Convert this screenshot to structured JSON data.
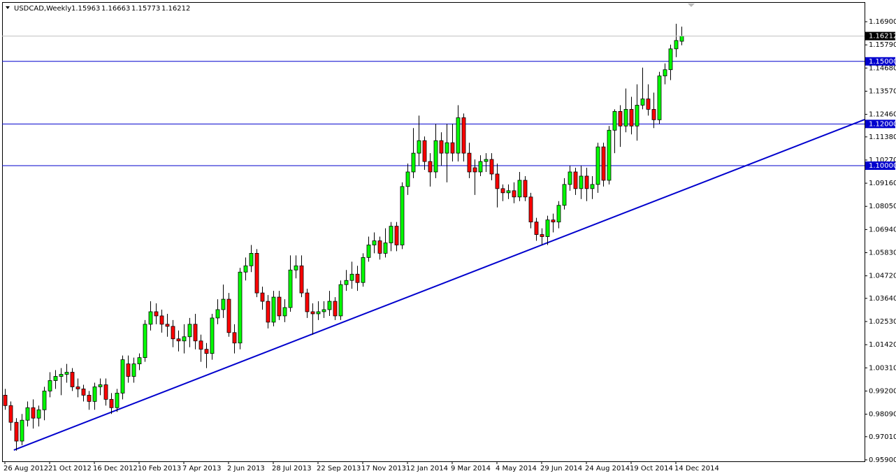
{
  "chart_data": {
    "type": "candlestick",
    "symbol": "USDCAD,Weekly",
    "categories": [
      "26 Aug 2012",
      null,
      null,
      null,
      null,
      null,
      null,
      null,
      "21 Oct 2012",
      null,
      null,
      null,
      null,
      null,
      null,
      null,
      "16 Dec 2012",
      null,
      null,
      null,
      null,
      null,
      null,
      null,
      "10 Feb 2013",
      null,
      null,
      null,
      null,
      null,
      null,
      null,
      "7 Apr 2013",
      null,
      null,
      null,
      null,
      null,
      null,
      null,
      "2 Jun 2013",
      null,
      null,
      null,
      null,
      null,
      null,
      null,
      "28 Jul 2013",
      null,
      null,
      null,
      null,
      null,
      null,
      null,
      "22 Sep 2013",
      null,
      null,
      null,
      null,
      null,
      null,
      null,
      "17 Nov 2013",
      null,
      null,
      null,
      null,
      null,
      null,
      null,
      "12 Jan 2014",
      null,
      null,
      null,
      null,
      null,
      null,
      null,
      "9 Mar 2014",
      null,
      null,
      null,
      null,
      null,
      null,
      null,
      "4 May 2014",
      null,
      null,
      null,
      null,
      null,
      null,
      null,
      "29 Jun 2014",
      null,
      null,
      null,
      null,
      null,
      null,
      null,
      "24 Aug 2014",
      null,
      null,
      null,
      null,
      null,
      null,
      null,
      "19 Oct 2014",
      null,
      null,
      null,
      null,
      null,
      null,
      null,
      "14 Dec 2014",
      null
    ],
    "open": [
      0.99,
      0.985,
      0.977,
      0.968,
      0.978,
      0.984,
      0.979,
      0.983,
      0.992,
      0.997,
      0.999,
      1.0,
      1.001,
      0.994,
      0.993,
      0.99,
      0.987,
      0.994,
      0.995,
      0.988,
      0.984,
      0.991,
      1.005,
      0.999,
      1.005,
      1.008,
      1.024,
      1.03,
      1.028,
      1.024,
      1.023,
      1.017,
      1.016,
      1.018,
      1.024,
      1.016,
      1.012,
      1.01,
      1.027,
      1.031,
      1.036,
      1.02,
      1.015,
      1.049,
      1.052,
      1.058,
      1.039,
      1.035,
      1.025,
      1.037,
      1.028,
      1.032,
      1.05,
      1.052,
      1.039,
      1.03,
      1.029,
      1.03,
      1.031,
      1.035,
      1.028,
      1.043,
      1.045,
      1.048,
      1.044,
      1.056,
      1.062,
      1.064,
      1.058,
      1.063,
      1.071,
      1.062,
      1.09,
      1.097,
      1.106,
      1.112,
      1.102,
      1.097,
      1.112,
      1.106,
      1.111,
      1.106,
      1.123,
      1.106,
      1.099,
      1.097,
      1.102,
      1.103,
      1.096,
      1.089,
      1.087,
      1.088,
      1.085,
      1.093,
      1.085,
      1.073,
      1.067,
      1.066,
      1.074,
      1.073,
      1.081,
      1.091,
      1.097,
      1.089,
      1.095,
      1.089,
      1.091,
      1.109,
      1.093,
      1.117,
      1.126,
      1.119,
      1.127,
      1.119,
      1.129,
      1.132,
      1.127,
      1.122,
      1.143,
      1.146,
      1.156,
      1.15963
    ],
    "high": [
      0.993,
      0.987,
      0.979,
      0.981,
      0.987,
      0.988,
      0.985,
      0.994,
      1.001,
      1.002,
      1.003,
      1.005,
      1.003,
      0.998,
      0.995,
      0.992,
      0.996,
      0.998,
      0.998,
      0.991,
      0.993,
      1.009,
      1.009,
      1.008,
      1.01,
      1.026,
      1.035,
      1.034,
      1.031,
      1.029,
      1.026,
      1.021,
      1.024,
      1.027,
      1.029,
      1.019,
      1.015,
      1.029,
      1.036,
      1.043,
      1.039,
      1.024,
      1.051,
      1.056,
      1.062,
      1.06,
      1.042,
      1.038,
      1.04,
      1.04,
      1.036,
      1.057,
      1.057,
      1.057,
      1.041,
      1.034,
      1.035,
      1.035,
      1.04,
      1.037,
      1.045,
      1.05,
      1.054,
      1.052,
      1.058,
      1.066,
      1.068,
      1.066,
      1.07,
      1.073,
      1.073,
      1.092,
      1.101,
      1.118,
      1.124,
      1.114,
      1.106,
      1.12,
      1.116,
      1.12,
      1.12,
      1.129,
      1.125,
      1.111,
      1.103,
      1.105,
      1.106,
      1.106,
      1.101,
      1.091,
      1.091,
      1.092,
      1.097,
      1.095,
      1.087,
      1.075,
      1.07,
      1.076,
      1.077,
      1.083,
      1.094,
      1.1,
      1.099,
      1.1,
      1.099,
      1.095,
      1.111,
      1.111,
      1.119,
      1.127,
      1.129,
      1.137,
      1.133,
      1.139,
      1.147,
      1.139,
      1.135,
      1.145,
      1.149,
      1.158,
      1.168,
      1.16663
    ],
    "low": [
      0.983,
      0.973,
      0.9634,
      0.966,
      0.975,
      0.974,
      0.975,
      0.978,
      0.989,
      0.993,
      0.99,
      0.996,
      0.992,
      0.989,
      0.987,
      0.983,
      0.983,
      0.99,
      0.985,
      0.981,
      0.982,
      0.988,
      0.996,
      0.996,
      1.002,
      1.006,
      1.021,
      1.024,
      1.02,
      1.018,
      1.013,
      1.011,
      1.01,
      1.013,
      1.012,
      1.006,
      1.003,
      1.007,
      1.024,
      1.027,
      1.018,
      1.01,
      1.012,
      1.045,
      1.049,
      1.037,
      1.031,
      1.022,
      1.023,
      1.026,
      1.025,
      1.03,
      1.046,
      1.037,
      1.027,
      1.019,
      1.026,
      1.027,
      1.028,
      1.026,
      1.026,
      1.04,
      1.041,
      1.04,
      1.042,
      1.054,
      1.058,
      1.055,
      1.056,
      1.059,
      1.059,
      1.06,
      1.086,
      1.094,
      1.1,
      1.098,
      1.09,
      1.094,
      1.1,
      1.092,
      1.102,
      1.102,
      1.102,
      1.094,
      1.086,
      1.095,
      1.097,
      1.093,
      1.08,
      1.083,
      1.084,
      1.082,
      1.083,
      1.083,
      1.07,
      1.064,
      1.062,
      1.062,
      1.068,
      1.07,
      1.079,
      1.088,
      1.086,
      1.084,
      1.083,
      1.084,
      1.087,
      1.09,
      1.091,
      1.106,
      1.109,
      1.116,
      1.115,
      1.112,
      1.127,
      1.124,
      1.118,
      1.12,
      1.139,
      1.141,
      1.152,
      1.15773
    ],
    "close": [
      0.985,
      0.977,
      0.968,
      0.978,
      0.984,
      0.979,
      0.983,
      0.992,
      0.997,
      0.999,
      1.0,
      1.001,
      0.994,
      0.993,
      0.99,
      0.987,
      0.994,
      0.995,
      0.988,
      0.984,
      0.991,
      1.007,
      0.999,
      1.005,
      1.008,
      1.024,
      1.03,
      1.028,
      1.024,
      1.023,
      1.017,
      1.016,
      1.018,
      1.024,
      1.016,
      1.012,
      1.01,
      1.027,
      1.031,
      1.036,
      1.02,
      1.015,
      1.049,
      1.052,
      1.058,
      1.039,
      1.035,
      1.025,
      1.037,
      1.028,
      1.032,
      1.05,
      1.052,
      1.039,
      1.03,
      1.029,
      1.03,
      1.031,
      1.035,
      1.028,
      1.043,
      1.045,
      1.048,
      1.044,
      1.056,
      1.062,
      1.064,
      1.058,
      1.063,
      1.071,
      1.062,
      1.09,
      1.097,
      1.106,
      1.112,
      1.102,
      1.097,
      1.112,
      1.106,
      1.111,
      1.106,
      1.123,
      1.106,
      1.097,
      1.097,
      1.102,
      1.103,
      1.096,
      1.089,
      1.087,
      1.088,
      1.085,
      1.093,
      1.085,
      1.073,
      1.067,
      1.066,
      1.074,
      1.073,
      1.081,
      1.091,
      1.097,
      1.089,
      1.095,
      1.089,
      1.091,
      1.109,
      1.093,
      1.117,
      1.126,
      1.119,
      1.127,
      1.119,
      1.129,
      1.132,
      1.127,
      1.122,
      1.143,
      1.146,
      1.156,
      1.16,
      1.16212
    ],
    "up_color": "#00ff00",
    "down_color": "#ff0000",
    "ylim": [
      0.9583,
      1.1784
    ],
    "yticks": [
      {
        "value": 1.169,
        "label": "1.16900"
      },
      {
        "value": 1.1579,
        "label": "1.15790"
      },
      {
        "value": 1.1468,
        "label": "1.14680"
      },
      {
        "value": 1.1357,
        "label": "1.13570"
      },
      {
        "value": 1.1246,
        "label": "1.12460"
      },
      {
        "value": 1.1138,
        "label": "1.11380"
      },
      {
        "value": 1.1027,
        "label": "1.10270"
      },
      {
        "value": 1.0916,
        "label": "1.09160"
      },
      {
        "value": 1.0805,
        "label": "1.08050"
      },
      {
        "value": 1.0694,
        "label": "1.06940"
      },
      {
        "value": 1.0583,
        "label": "1.05830"
      },
      {
        "value": 1.0472,
        "label": "1.04720"
      },
      {
        "value": 1.0364,
        "label": "1.03640"
      },
      {
        "value": 1.0253,
        "label": "1.02530"
      },
      {
        "value": 1.0142,
        "label": "1.01420"
      },
      {
        "value": 1.0031,
        "label": "1.00310"
      },
      {
        "value": 0.992,
        "label": "0.99200"
      },
      {
        "value": 0.9809,
        "label": "0.98090"
      },
      {
        "value": 0.9701,
        "label": "0.97010"
      },
      {
        "value": 0.959,
        "label": "0.95900"
      }
    ],
    "levels": [
      {
        "value": 1.15,
        "label": "1.15000"
      },
      {
        "value": 1.12,
        "label": "1.12000"
      },
      {
        "value": 1.1,
        "label": "1.10000"
      }
    ],
    "level_color": "#0000cd",
    "trendline": {
      "x": [
        1.6,
        153.75
      ],
      "y": [
        0.9637,
        1.1221
      ],
      "color": "#0000cd"
    }
  }
}
